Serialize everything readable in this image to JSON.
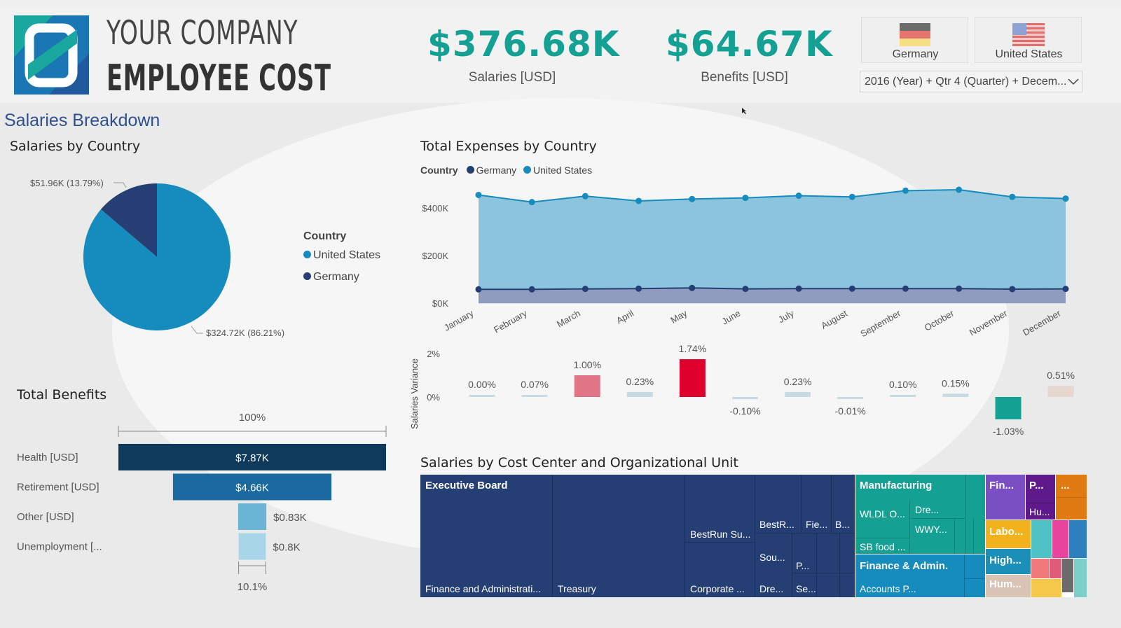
{
  "header": {
    "company_line": "YOUR COMPANY",
    "title_line": "EMPLOYEE COST"
  },
  "kpis": {
    "salaries_value": "$376.68K",
    "salaries_label": "Salaries [USD]",
    "benefits_value": "$64.67K",
    "benefits_label": "Benefits [USD]"
  },
  "slicer": {
    "countries": [
      "Germany",
      "United States"
    ],
    "date_filter": "2016 (Year) + Qtr 4 (Quarter) + Decem..."
  },
  "section": {
    "salaries_breakdown": "Salaries Breakdown"
  },
  "pie": {
    "title": "Salaries by Country",
    "legend_title": "Country",
    "legend": [
      "United States",
      "Germany"
    ],
    "label_germany": "$51.96K (13.79%)",
    "label_us": "$324.72K (86.21%)"
  },
  "area": {
    "title": "Total Expenses by Country",
    "legend_title": "Country",
    "legend": [
      "Germany",
      "United States"
    ]
  },
  "variance": {
    "axis_label": "Salaries Variance",
    "ticks": [
      "2%",
      "0%"
    ],
    "labels": [
      "0.00%",
      "0.07%",
      "1.00%",
      "0.23%",
      "1.74%",
      "-0.10%",
      "0.23%",
      "-0.01%",
      "0.10%",
      "0.15%",
      "-1.03%",
      "0.51%"
    ]
  },
  "benefits": {
    "title": "Total Benefits",
    "top_label": "100%",
    "bottom_label": "10.1%",
    "categories": [
      "Health [USD]",
      "Retirement [USD]",
      "Other [USD]",
      "Unemployment [..."
    ],
    "value_labels": [
      "$7.87K",
      "$4.66K",
      "$0.83K",
      "$0.8K"
    ]
  },
  "treemap": {
    "title": "Salaries by Cost Center and Organizational Unit",
    "groups": {
      "executive_board": "Executive Board",
      "manufacturing": "Manufacturing",
      "finance_admin": "Finance & Admin.",
      "fin": "Fin...",
      "p": "P...",
      "ellipsis": "...",
      "labo": "Labo...",
      "high": "High...",
      "hum": "Hum..."
    },
    "items": {
      "finance_administration": "Finance and Administrati...",
      "treasury": "Treasury",
      "bestrun_su": "BestRun Su...",
      "corporate": "Corporate ...",
      "bestr": "BestR...",
      "fie": "Fie...",
      "b": "B...",
      "sou": "Sou...",
      "p_small": "P...",
      "dre": "Dre...",
      "se": "Se...",
      "wldl": "WLDL O...",
      "dre2": "Dre...",
      "wwy": "WWY...",
      "sb_food": "SB food ...",
      "accounts_p": "Accounts P...",
      "hu": "Hu..."
    }
  },
  "colors": {
    "teal": "#14a093",
    "navy": "#253f74",
    "blue": "#168bbd",
    "red": "#e0002e",
    "pink": "#e07587"
  },
  "chart_data": [
    {
      "type": "pie",
      "title": "Salaries by Country",
      "categories": [
        "United States",
        "Germany"
      ],
      "values": [
        324.72,
        51.96
      ],
      "percent": [
        86.21,
        13.79
      ],
      "unit": "K USD"
    },
    {
      "type": "area",
      "title": "Total Expenses by Country",
      "categories": [
        "January",
        "February",
        "March",
        "April",
        "May",
        "June",
        "July",
        "August",
        "September",
        "October",
        "November",
        "December"
      ],
      "series": [
        {
          "name": "Germany",
          "values": [
            58,
            58,
            60,
            61,
            64,
            60,
            61,
            61,
            61,
            61,
            59,
            60
          ]
        },
        {
          "name": "United States",
          "values": [
            455,
            425,
            450,
            430,
            438,
            443,
            452,
            447,
            473,
            477,
            447,
            440
          ]
        }
      ],
      "ylabel": "",
      "yticks": [
        "$0K",
        "$200K",
        "$400K"
      ],
      "ylim": [
        0,
        480
      ]
    },
    {
      "type": "bar",
      "title": "Salaries Variance",
      "categories": [
        "January",
        "February",
        "March",
        "April",
        "May",
        "June",
        "July",
        "August",
        "September",
        "October",
        "November",
        "December"
      ],
      "values": [
        0.0,
        0.07,
        1.0,
        0.23,
        1.74,
        -0.1,
        0.23,
        -0.01,
        0.1,
        0.15,
        -1.03,
        0.51
      ],
      "ylabel": "Salaries Variance",
      "ylim": [
        -1.2,
        2
      ]
    },
    {
      "type": "bar",
      "title": "Total Benefits",
      "categories": [
        "Health [USD]",
        "Retirement [USD]",
        "Other [USD]",
        "Unemployment [..."
      ],
      "values": [
        7.87,
        4.66,
        0.83,
        0.8
      ],
      "unit": "K USD"
    }
  ]
}
